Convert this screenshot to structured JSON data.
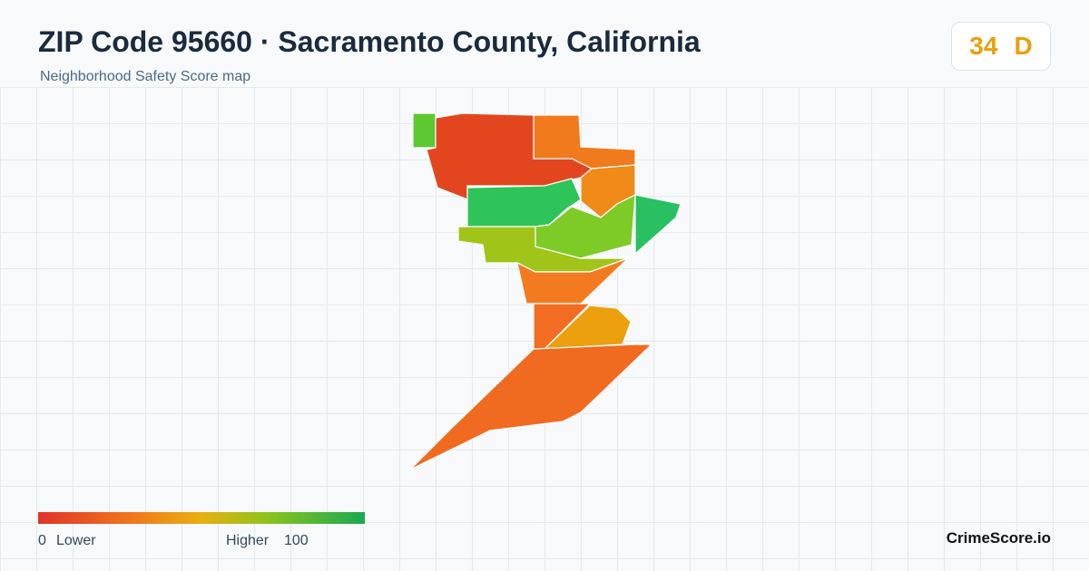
{
  "header": {
    "title": "ZIP Code 95660 · Sacramento County, California",
    "subtitle": "Neighborhood Safety Score map"
  },
  "score": {
    "value": 34,
    "grade": "D"
  },
  "legend": {
    "min": 0,
    "min_label": "Lower",
    "max_label": "Higher",
    "max": 100
  },
  "footer": {
    "brand": "CrimeScore.io"
  }
}
